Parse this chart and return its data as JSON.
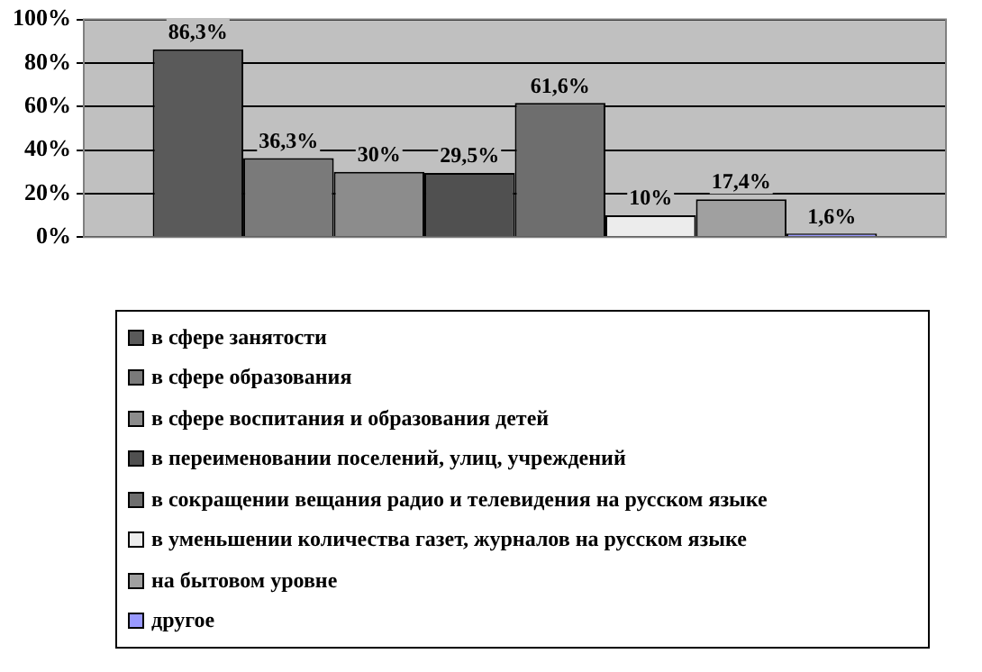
{
  "chart_data": {
    "type": "bar",
    "categories": [
      null
    ],
    "series": [
      {
        "name": "в сфере занятости",
        "color": "#5a5a5a",
        "values": [
          86.3
        ],
        "value_labels": [
          "86,3%"
        ]
      },
      {
        "name": "в сфере образования",
        "color": "#7a7a7a",
        "values": [
          36.3
        ],
        "value_labels": [
          "36,3%"
        ]
      },
      {
        "name": "в сфере воспитания и образования детей",
        "color": "#8c8c8c",
        "values": [
          30
        ],
        "value_labels": [
          "30%"
        ]
      },
      {
        "name": "в переименовании поселений, улиц, учреждений",
        "color": "#505050",
        "values": [
          29.5
        ],
        "value_labels": [
          "29,5%"
        ]
      },
      {
        "name": "в сокращении вещания радио и телевидения на русском языке",
        "color": "#6e6e6e",
        "values": [
          61.6
        ],
        "value_labels": [
          "61,6%"
        ]
      },
      {
        "name": "в уменьшении количества газет, журналов на русском языке",
        "color": "#ececec",
        "values": [
          10
        ],
        "value_labels": [
          "10%"
        ]
      },
      {
        "name": "на бытовом уровне",
        "color": "#a0a0a0",
        "values": [
          17.4
        ],
        "value_labels": [
          "17,4%"
        ]
      },
      {
        "name": "другое",
        "color": "#9999ff",
        "values": [
          1.6
        ],
        "value_labels": [
          "1,6%"
        ]
      }
    ],
    "ylim": [
      0,
      100
    ],
    "yticks": [
      {
        "value": 0,
        "label": "0%"
      },
      {
        "value": 20,
        "label": "20%"
      },
      {
        "value": 40,
        "label": "40%"
      },
      {
        "value": 60,
        "label": "60%"
      },
      {
        "value": 80,
        "label": "80%"
      },
      {
        "value": 100,
        "label": "100%"
      }
    ],
    "grid": "y",
    "legend": "bottom"
  }
}
